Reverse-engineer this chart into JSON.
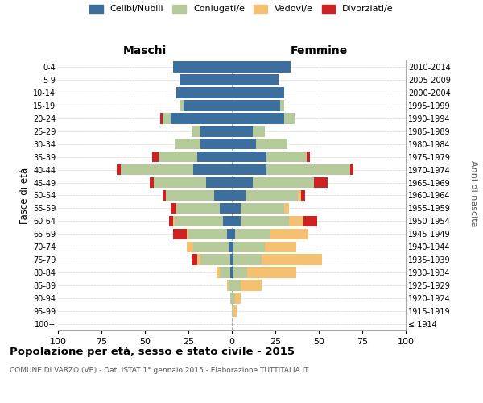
{
  "age_groups": [
    "100+",
    "95-99",
    "90-94",
    "85-89",
    "80-84",
    "75-79",
    "70-74",
    "65-69",
    "60-64",
    "55-59",
    "50-54",
    "45-49",
    "40-44",
    "35-39",
    "30-34",
    "25-29",
    "20-24",
    "15-19",
    "10-14",
    "5-9",
    "0-4"
  ],
  "birth_years": [
    "≤ 1914",
    "1915-1919",
    "1920-1924",
    "1925-1929",
    "1930-1934",
    "1935-1939",
    "1940-1944",
    "1945-1949",
    "1950-1954",
    "1955-1959",
    "1960-1964",
    "1965-1969",
    "1970-1974",
    "1975-1979",
    "1980-1984",
    "1985-1989",
    "1990-1994",
    "1995-1999",
    "2000-2004",
    "2005-2009",
    "2010-2014"
  ],
  "maschi": {
    "celibi": [
      0,
      0,
      0,
      0,
      1,
      1,
      2,
      3,
      5,
      7,
      10,
      15,
      22,
      20,
      18,
      18,
      35,
      28,
      32,
      30,
      34
    ],
    "coniugati": [
      0,
      0,
      1,
      2,
      6,
      17,
      20,
      22,
      28,
      25,
      28,
      30,
      42,
      22,
      15,
      5,
      5,
      2,
      0,
      0,
      0
    ],
    "vedovi": [
      0,
      0,
      0,
      1,
      2,
      2,
      4,
      1,
      1,
      0,
      0,
      0,
      0,
      0,
      0,
      0,
      0,
      0,
      0,
      0,
      0
    ],
    "divorziati": [
      0,
      0,
      0,
      0,
      0,
      3,
      0,
      8,
      2,
      3,
      2,
      2,
      2,
      4,
      0,
      0,
      1,
      0,
      0,
      0,
      0
    ]
  },
  "femmine": {
    "nubili": [
      0,
      0,
      0,
      0,
      1,
      1,
      1,
      2,
      5,
      5,
      8,
      12,
      20,
      20,
      14,
      12,
      30,
      28,
      30,
      27,
      34
    ],
    "coniugate": [
      0,
      1,
      2,
      5,
      8,
      16,
      18,
      20,
      28,
      25,
      30,
      35,
      48,
      23,
      18,
      7,
      6,
      2,
      0,
      0,
      0
    ],
    "vedove": [
      0,
      2,
      3,
      12,
      28,
      35,
      18,
      22,
      8,
      3,
      2,
      0,
      0,
      0,
      0,
      0,
      0,
      0,
      0,
      0,
      0
    ],
    "divorziate": [
      0,
      0,
      0,
      0,
      0,
      0,
      0,
      0,
      8,
      0,
      2,
      8,
      2,
      2,
      0,
      0,
      0,
      0,
      0,
      0,
      0
    ]
  },
  "colors": {
    "celibi": "#3c6e9e",
    "coniugati": "#b5c99a",
    "vedovi": "#f4c072",
    "divorziati": "#cc2222"
  },
  "xlim": 100,
  "title": "Popolazione per età, sesso e stato civile - 2015",
  "subtitle": "COMUNE DI VARZO (VB) - Dati ISTAT 1° gennaio 2015 - Elaborazione TUTTITALIA.IT",
  "ylabel": "Fasce di età",
  "ylabel_right": "Anni di nascita",
  "xlabel_maschi": "Maschi",
  "xlabel_femmine": "Femmine",
  "legend_labels": [
    "Celibi/Nubili",
    "Coniugati/e",
    "Vedovi/e",
    "Divorziati/e"
  ],
  "xtick_vals": [
    -100,
    -75,
    -50,
    -25,
    0,
    25,
    50,
    75,
    100
  ]
}
